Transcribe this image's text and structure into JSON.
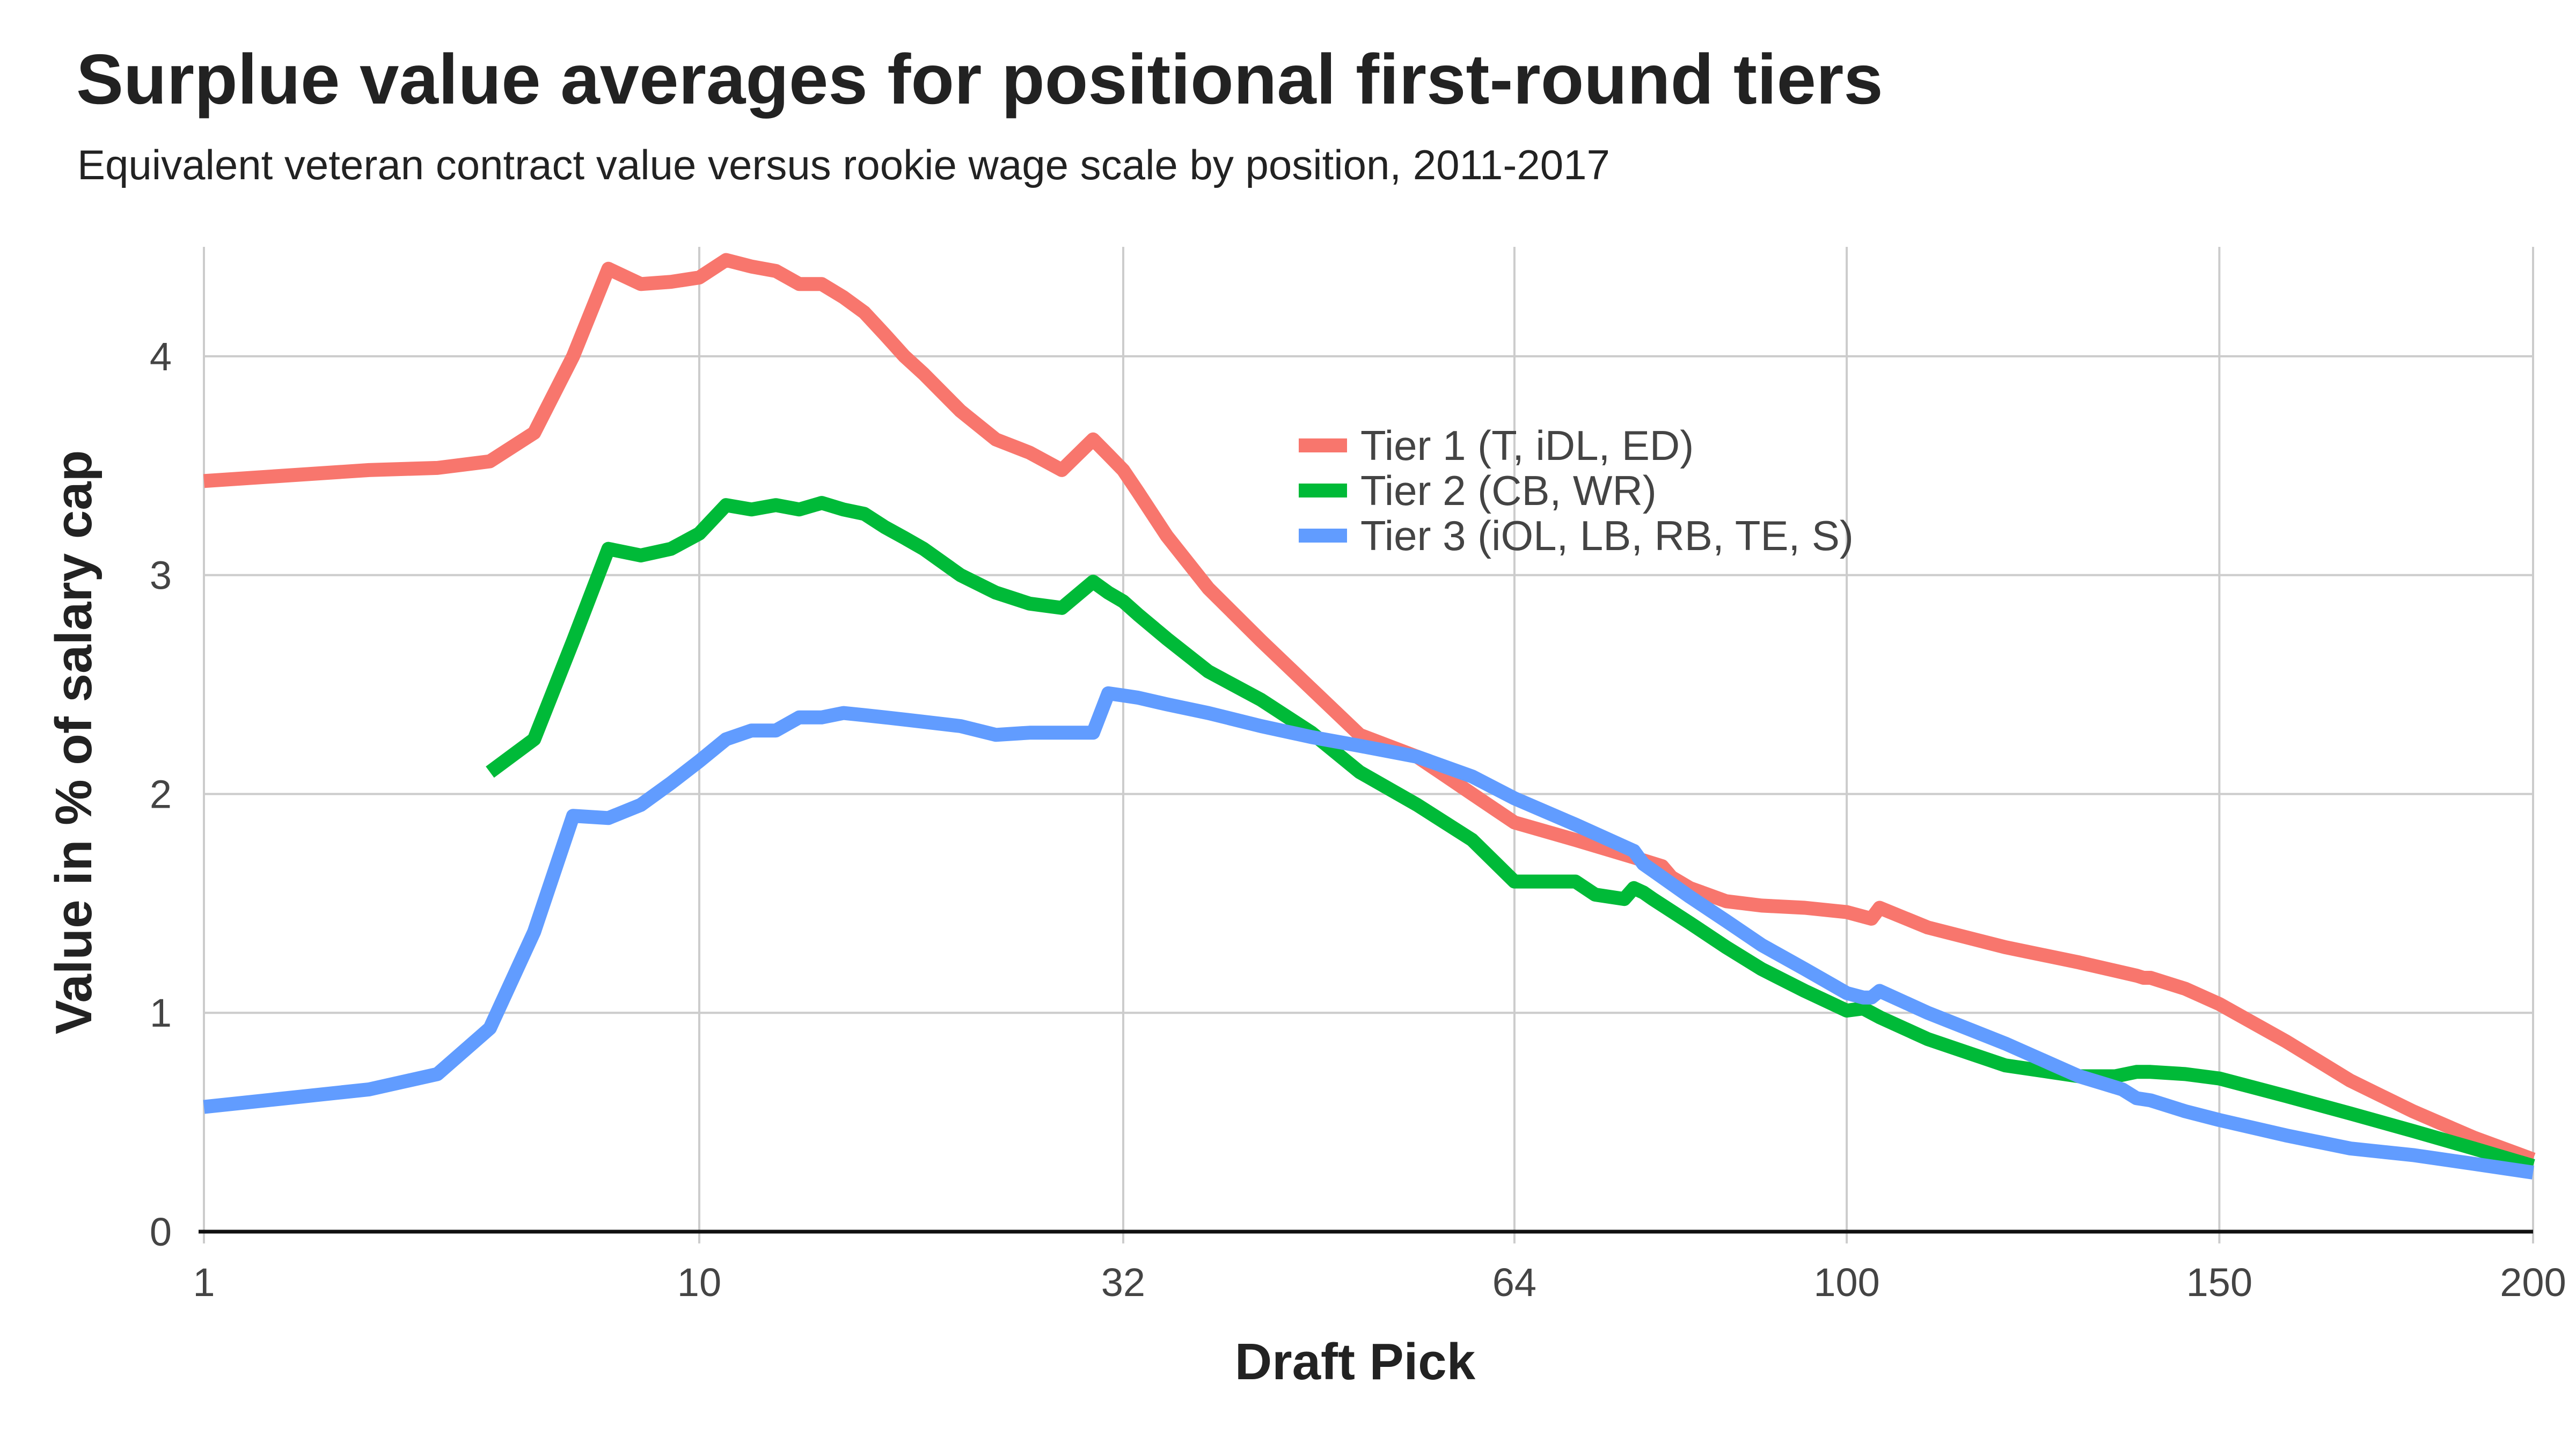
{
  "chart_data": {
    "type": "line",
    "title": "Surplue value averages for positional first-round tiers",
    "subtitle": "Equivalent veteran contract value versus rookie wage scale by position, 2011-2017",
    "xlabel": "Draft Pick",
    "ylabel": "Value in % of salary cap",
    "xlim": [
      1,
      200
    ],
    "ylim": [
      0,
      4.5
    ],
    "x_scale": "sqrt",
    "x_ticks": [
      1,
      10,
      32,
      64,
      100,
      150,
      200
    ],
    "y_ticks": [
      0,
      1,
      2,
      3,
      4
    ],
    "grid": true,
    "legend_position": "top-center",
    "series": [
      {
        "name": "Tier 1 (T, iDL, ED)",
        "color": "#F8766D",
        "x": [
          1,
          2,
          3,
          4,
          5,
          6,
          7,
          8,
          9,
          10,
          11,
          12,
          13,
          14,
          15,
          16,
          17,
          18,
          19,
          20,
          22,
          24,
          26,
          28,
          30,
          31,
          32,
          33,
          35,
          38,
          42,
          46,
          50,
          55,
          60,
          64,
          70,
          76,
          79,
          80,
          82,
          86,
          90,
          95,
          100,
          103,
          104,
          110,
          120,
          130,
          138,
          139,
          140,
          145,
          150,
          160,
          170,
          180,
          190,
          200
        ],
        "values": [
          3.43,
          3.48,
          3.49,
          3.52,
          3.65,
          4.0,
          4.4,
          4.33,
          4.34,
          4.36,
          4.44,
          4.41,
          4.39,
          4.33,
          4.33,
          4.27,
          4.2,
          4.1,
          4.0,
          3.92,
          3.75,
          3.62,
          3.56,
          3.48,
          3.62,
          3.55,
          3.48,
          3.38,
          3.18,
          2.94,
          2.7,
          2.48,
          2.27,
          2.17,
          2.0,
          1.87,
          1.79,
          1.71,
          1.67,
          1.62,
          1.57,
          1.51,
          1.49,
          1.48,
          1.46,
          1.43,
          1.48,
          1.39,
          1.3,
          1.23,
          1.17,
          1.16,
          1.16,
          1.11,
          1.04,
          0.87,
          0.69,
          0.55,
          0.43,
          0.33
        ]
      },
      {
        "name": "Tier 2 (CB, WR)",
        "color": "#00BA38",
        "x": [
          4,
          5,
          6,
          7,
          8,
          9,
          10,
          11,
          12,
          13,
          14,
          15,
          16,
          17,
          18,
          19,
          20,
          22,
          24,
          26,
          28,
          30,
          31,
          32,
          33,
          35,
          38,
          42,
          46,
          50,
          55,
          60,
          64,
          70,
          72,
          75,
          76,
          77,
          78,
          82,
          86,
          90,
          95,
          100,
          102,
          104,
          110,
          120,
          130,
          135,
          138,
          140,
          145,
          150,
          160,
          170,
          180,
          190,
          200
        ],
        "values": [
          2.1,
          2.25,
          2.7,
          3.12,
          3.09,
          3.12,
          3.19,
          3.32,
          3.3,
          3.32,
          3.3,
          3.33,
          3.3,
          3.28,
          3.22,
          3.17,
          3.12,
          3.0,
          2.92,
          2.87,
          2.85,
          2.97,
          2.92,
          2.88,
          2.82,
          2.71,
          2.56,
          2.43,
          2.28,
          2.1,
          1.95,
          1.79,
          1.6,
          1.6,
          1.54,
          1.52,
          1.57,
          1.55,
          1.52,
          1.41,
          1.3,
          1.2,
          1.1,
          1.01,
          1.02,
          0.98,
          0.88,
          0.76,
          0.71,
          0.71,
          0.73,
          0.73,
          0.72,
          0.7,
          0.62,
          0.54,
          0.46,
          0.38,
          0.3
        ]
      },
      {
        "name": "Tier 3 (iOL, LB, RB, TE, S)",
        "color": "#619CFF",
        "x": [
          1,
          2,
          3,
          4,
          5,
          6,
          7,
          8,
          9,
          10,
          11,
          12,
          13,
          14,
          15,
          16,
          17,
          18,
          19,
          20,
          22,
          24,
          26,
          28,
          30,
          31,
          32,
          33,
          35,
          38,
          42,
          46,
          50,
          55,
          60,
          64,
          70,
          76,
          77,
          78,
          82,
          86,
          90,
          95,
          100,
          102,
          103,
          104,
          110,
          120,
          130,
          136,
          138,
          140,
          145,
          150,
          160,
          170,
          180,
          190,
          200
        ],
        "values": [
          0.57,
          0.65,
          0.72,
          0.93,
          1.37,
          1.9,
          1.89,
          1.95,
          2.05,
          2.15,
          2.25,
          2.29,
          2.29,
          2.35,
          2.35,
          2.37,
          2.36,
          2.35,
          2.34,
          2.33,
          2.31,
          2.27,
          2.28,
          2.28,
          2.28,
          2.46,
          2.45,
          2.44,
          2.41,
          2.37,
          2.31,
          2.26,
          2.22,
          2.17,
          2.08,
          1.98,
          1.86,
          1.74,
          1.68,
          1.65,
          1.53,
          1.42,
          1.31,
          1.2,
          1.09,
          1.07,
          1.07,
          1.1,
          1.0,
          0.86,
          0.71,
          0.65,
          0.61,
          0.6,
          0.55,
          0.51,
          0.44,
          0.38,
          0.35,
          0.31,
          0.27
        ]
      }
    ]
  }
}
